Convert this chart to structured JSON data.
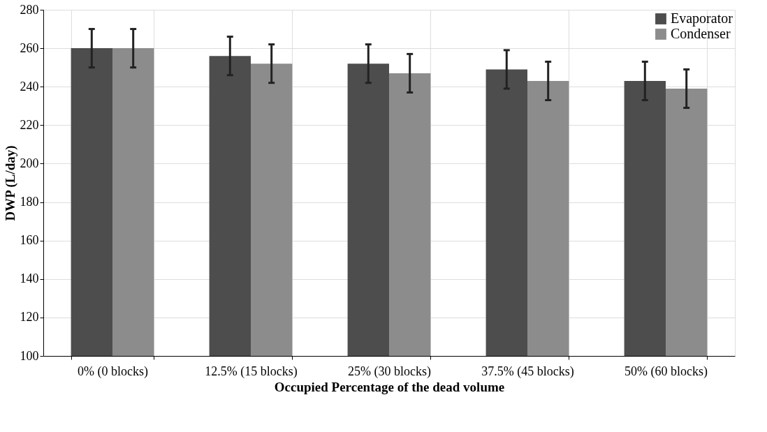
{
  "chart_data": {
    "type": "bar",
    "xlabel": "Occupied Percentage of the dead volume",
    "ylabel": "DWP (L/day)",
    "categories": [
      "0% (0 blocks)",
      "12.5% (15 blocks)",
      "25% (30 blocks)",
      "37.5% (45 blocks)",
      "50% (60 blocks)"
    ],
    "series": [
      {
        "name": "Evaporator",
        "color": "#4d4d4d",
        "values": [
          260,
          256,
          252,
          249,
          243
        ],
        "errors": [
          10,
          10,
          10,
          10,
          10
        ]
      },
      {
        "name": "Condenser",
        "color": "#8c8c8c",
        "values": [
          260,
          252,
          247,
          243,
          239
        ],
        "errors": [
          10,
          10,
          10,
          10,
          10
        ]
      }
    ],
    "ylim": [
      100,
      280
    ],
    "yticks": [
      100,
      120,
      140,
      160,
      180,
      200,
      220,
      240,
      260,
      280
    ],
    "grid": true,
    "legend": "top right"
  }
}
